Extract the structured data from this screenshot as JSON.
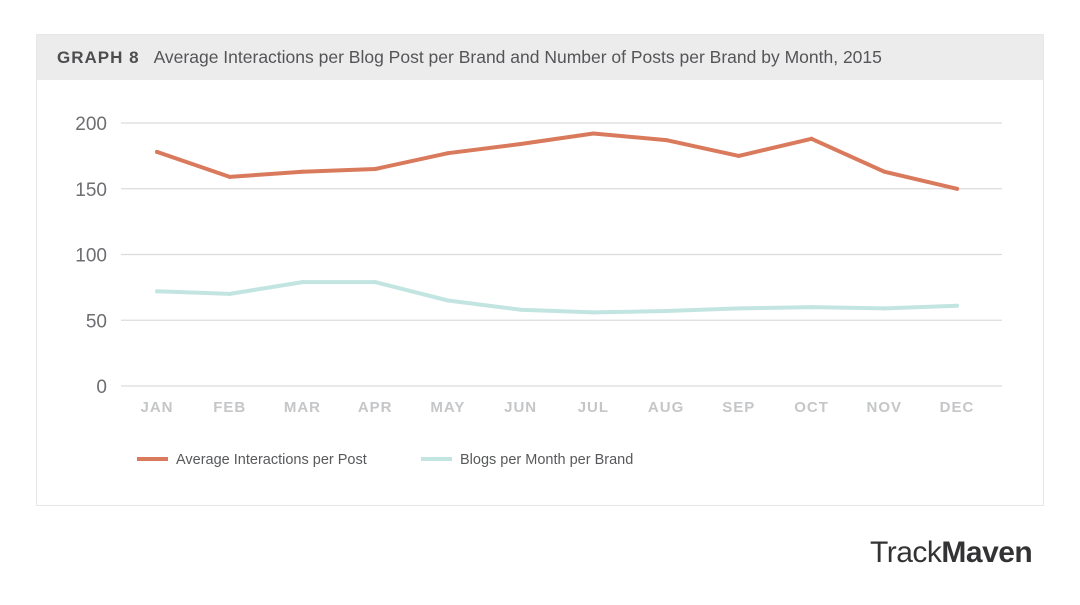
{
  "header": {
    "label": "GRAPH 8",
    "title": "Average Interactions per Blog Post per Brand and Number of Posts per Brand by Month, 2015"
  },
  "logo": {
    "light": "Track",
    "bold": "Maven"
  },
  "chart_data": {
    "type": "line",
    "categories": [
      "JAN",
      "FEB",
      "MAR",
      "APR",
      "MAY",
      "JUN",
      "JUL",
      "AUG",
      "SEP",
      "OCT",
      "NOV",
      "DEC"
    ],
    "yticks": [
      "0",
      "50",
      "100",
      "150",
      "200"
    ],
    "ylim": [
      0,
      200
    ],
    "grid": true,
    "legend_position": "bottom-left",
    "series": [
      {
        "name": "Average Interactions per Post",
        "color": "#d97a5c",
        "values": [
          178,
          159,
          163,
          165,
          177,
          184,
          192,
          187,
          175,
          188,
          163,
          150
        ]
      },
      {
        "name": "Blogs per Month per Brand",
        "color": "#c2e5e1",
        "values": [
          72,
          70,
          79,
          79,
          65,
          58,
          56,
          57,
          59,
          60,
          59,
          61
        ]
      }
    ]
  }
}
